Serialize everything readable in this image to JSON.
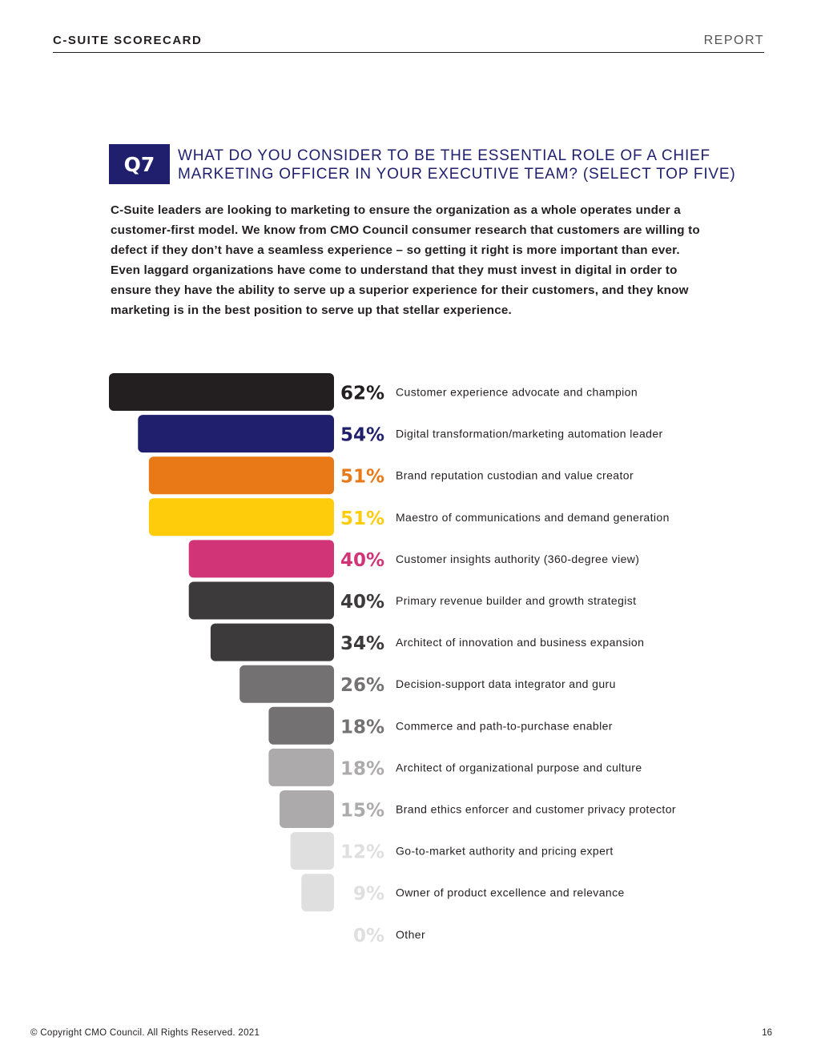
{
  "header": {
    "left": "C-SUITE SCORECARD",
    "right": "REPORT"
  },
  "question": {
    "badge": "Q7",
    "title": "WHAT DO YOU CONSIDER TO BE THE ESSENTIAL ROLE OF A CHIEF MARKETING OFFICER IN YOUR EXECUTIVE TEAM? (SELECT TOP FIVE)"
  },
  "body_text": "C-Suite leaders are looking to marketing to ensure the organization as a whole operates under a customer-first model. We know from CMO Council consumer research that customers are willing to defect if they don’t have a seamless experience – so getting it right is more important than ever. Even laggard organizations have come to understand that they must invest in digital in order to ensure they have the ability to serve up a superior experience for their customers, and they know marketing is in the best position to serve up that stellar experience.",
  "chart_data": {
    "type": "bar",
    "orientation": "horizontal-funnel",
    "unit": "%",
    "categories": [
      "Customer experience advocate and champion",
      "Digital transformation/marketing automation leader",
      "Brand reputation custodian and value creator",
      "Maestro of communications and demand generation",
      "Customer insights authority (360-degree view)",
      "Primary revenue builder and growth strategist",
      "Architect of innovation and business expansion",
      "Decision-support data integrator and guru",
      "Commerce and path-to-purchase enabler",
      "Architect of organizational purpose and culture",
      "Brand ethics enforcer and customer privacy protector",
      "Go-to-market authority and pricing expert",
      "Owner of product excellence and relevance",
      "Other"
    ],
    "values": [
      62,
      54,
      51,
      51,
      40,
      40,
      34,
      26,
      18,
      18,
      15,
      12,
      9,
      0
    ],
    "value_labels": [
      "62%",
      "54%",
      "51%",
      "51%",
      "40%",
      "40%",
      "34%",
      "26%",
      "18%",
      "18%",
      "15%",
      "12%",
      "9%",
      "0%"
    ],
    "bar_colors": [
      "#231f20",
      "#1f1f6e",
      "#e97817",
      "#fecc0a",
      "#d23478",
      "#3d3a3b",
      "#3d3a3b",
      "#737172",
      "#737172",
      "#acaaab",
      "#acaaab",
      "#e0dfdf",
      "#e0dfdf",
      "#e0dfdf"
    ],
    "label_colors": [
      "#231f20",
      "#1f1f6e",
      "#e97817",
      "#fecc0a",
      "#d23478",
      "#3d3a3b",
      "#3d3a3b",
      "#737172",
      "#737172",
      "#acaaab",
      "#acaaab",
      "#e0dfdf",
      "#e0dfdf",
      "#e0dfdf"
    ],
    "xlim": [
      0,
      62
    ],
    "legend": "none",
    "grid": false
  },
  "footer": {
    "copyright": "© Copyright CMO Council. All Rights Reserved. 2021",
    "page": "16"
  }
}
